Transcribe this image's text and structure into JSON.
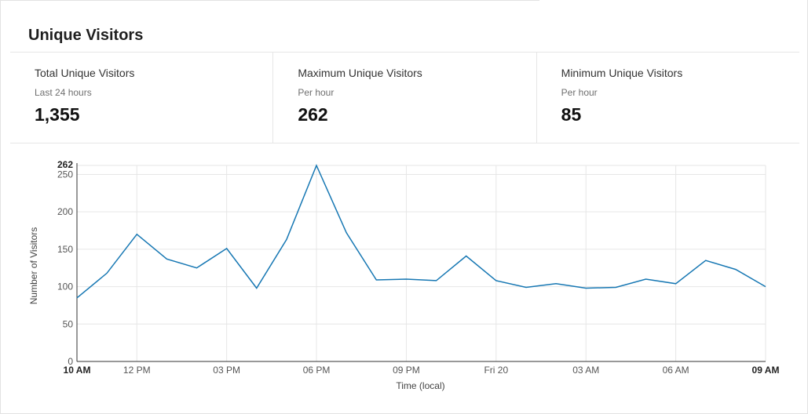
{
  "card": {
    "title": "Unique Visitors"
  },
  "stats": [
    {
      "label": "Total Unique Visitors",
      "sub": "Last 24 hours",
      "value": "1,355"
    },
    {
      "label": "Maximum Unique Visitors",
      "sub": "Per hour",
      "value": "262"
    },
    {
      "label": "Minimum Unique Visitors",
      "sub": "Per hour",
      "value": "85"
    }
  ],
  "chart_data": {
    "type": "line",
    "xlabel": "Time (local)",
    "ylabel": "Number of Visitors",
    "ylim": [
      0,
      262
    ],
    "yticks": [
      0,
      50,
      100,
      150,
      200,
      250,
      262
    ],
    "grid": true,
    "line_color": "#1677b3",
    "x_ticks": [
      {
        "i": 0,
        "label": "10 AM",
        "bold": true
      },
      {
        "i": 2,
        "label": "12 PM",
        "bold": false
      },
      {
        "i": 5,
        "label": "03 PM",
        "bold": false
      },
      {
        "i": 8,
        "label": "06 PM",
        "bold": false
      },
      {
        "i": 11,
        "label": "09 PM",
        "bold": false
      },
      {
        "i": 14,
        "label": "Fri 20",
        "bold": false
      },
      {
        "i": 17,
        "label": "03 AM",
        "bold": false
      },
      {
        "i": 20,
        "label": "06 AM",
        "bold": false
      },
      {
        "i": 23,
        "label": "09 AM",
        "bold": true
      }
    ],
    "series": [
      {
        "values": [
          85,
          118,
          170,
          137,
          125,
          151,
          98,
          163,
          262,
          172,
          109,
          110,
          108,
          141,
          108,
          99,
          104,
          98,
          99,
          110,
          104,
          135,
          123,
          100
        ]
      }
    ]
  }
}
